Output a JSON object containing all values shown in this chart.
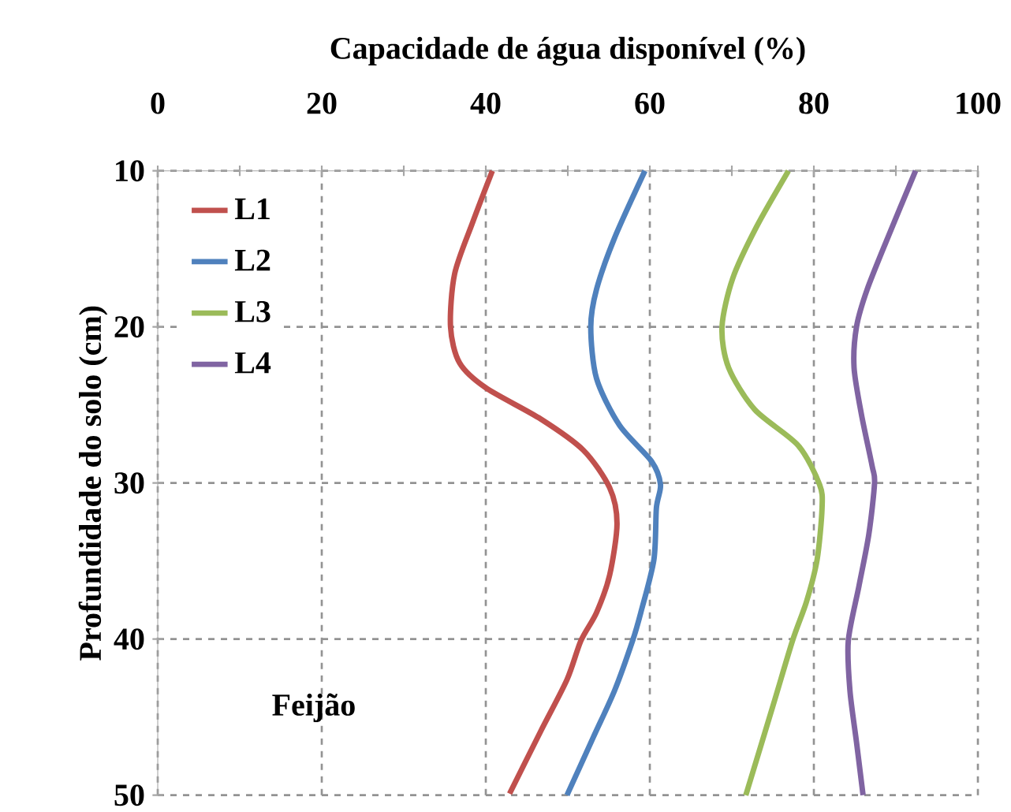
{
  "chart_data": {
    "type": "line",
    "xlabel": "Capacidade de água disponível (%)",
    "ylabel": "Profundidade do solo (cm)",
    "xlim": [
      0,
      100
    ],
    "xticks": [
      0,
      {
        "value": 10,
        "label": null
      },
      20,
      {
        "value": 30,
        "label": null
      },
      40,
      {
        "value": 50,
        "label": null
      },
      60,
      {
        "value": 70,
        "label": null
      },
      80,
      {
        "value": 90,
        "label": null
      },
      100
    ],
    "ylim": [
      50,
      10
    ],
    "yticks": [
      10,
      20,
      30,
      40,
      50
    ],
    "grid": true,
    "legend": "top left",
    "line_style": "solid",
    "annotations": [
      "Feijão"
    ],
    "series": [
      {
        "name": "L1",
        "color": "#c0504d",
        "x": [
          40.8,
          38.4,
          36.2,
          35.7,
          36.8,
          40,
          46.7,
          51.9,
          55.1,
          56,
          55.1,
          53.5,
          51.6,
          49.9,
          46.7,
          42.9
        ],
        "values": [
          10,
          13.3,
          16.6,
          20,
          22.3,
          23.9,
          25.9,
          27.9,
          30.3,
          32.6,
          35.9,
          38.3,
          40.1,
          42.6,
          45.9,
          49.9
        ]
      },
      {
        "name": "L2",
        "color": "#4f81bd",
        "x": [
          59.4,
          55.7,
          53.5,
          52.8,
          53.5,
          56.3,
          60.2,
          61.3,
          60.8,
          60.5,
          58.9,
          57.9,
          55.7,
          53.1,
          49.9
        ],
        "values": [
          10,
          14.3,
          17.6,
          20,
          23.3,
          26.3,
          28.6,
          30.1,
          31.6,
          34.9,
          38.3,
          40.1,
          43.3,
          46.3,
          50
        ]
      },
      {
        "name": "L3",
        "color": "#9bbb59",
        "x": [
          76.9,
          73,
          70.1,
          68.8,
          69.6,
          72.8,
          78.1,
          80.7,
          81,
          80.4,
          79.1,
          77.4,
          75,
          71.7
        ],
        "values": [
          10,
          13.6,
          16.9,
          20,
          22.6,
          25.3,
          27.6,
          30.1,
          31.6,
          34.9,
          37.6,
          40.1,
          44.3,
          50
        ]
      },
      {
        "name": "L4",
        "color": "#8064a2",
        "x": [
          92.4,
          89,
          86.5,
          85.2,
          84.9,
          85.8,
          87.1,
          87.4,
          86.7,
          85.5,
          84.2,
          84.4,
          85.2,
          86
        ],
        "values": [
          10,
          14.3,
          17.6,
          20,
          22.6,
          25.6,
          28.9,
          30,
          33.3,
          36.6,
          40.1,
          43.3,
          46.6,
          50
        ]
      }
    ]
  }
}
